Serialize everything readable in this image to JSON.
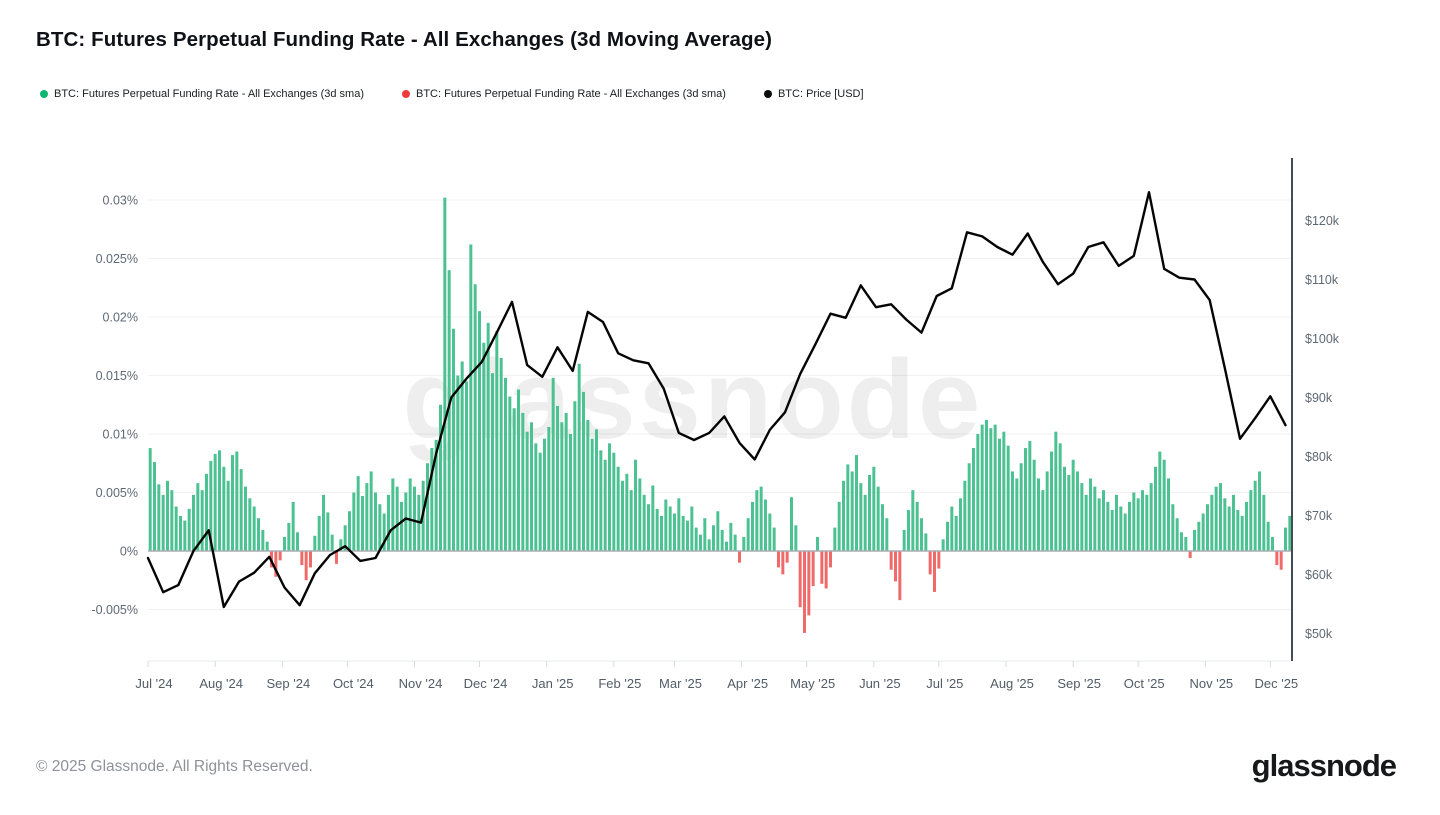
{
  "header": {
    "title": "BTC: Futures Perpetual Funding Rate - All Exchanges (3d Moving Average)"
  },
  "legend": {
    "items": [
      {
        "label": "BTC: Futures Perpetual Funding Rate - All Exchanges (3d sma)",
        "color": "#10b572"
      },
      {
        "label": "BTC: Futures Perpetual Funding Rate - All Exchanges (3d sma)",
        "color": "#f03b3b"
      },
      {
        "label": "BTC: Price [USD]",
        "color": "#0a0a0a"
      }
    ]
  },
  "watermark": "glassnode",
  "footer": {
    "copyright": "© 2025 Glassnode. All Rights Reserved.",
    "brand": "glassnode"
  },
  "chart_data": {
    "type": "bar+line",
    "title": "BTC: Futures Perpetual Funding Rate - All Exchanges (3d Moving Average)",
    "grid": "horizontal",
    "x_ticks": [
      "Jul '24",
      "Aug '24",
      "Sep '24",
      "Oct '24",
      "Nov '24",
      "Dec '24",
      "Jan '25",
      "Feb '25",
      "Mar '25",
      "Apr '25",
      "May '25",
      "Jun '25",
      "Jul '25",
      "Aug '25",
      "Sep '25",
      "Oct '25",
      "Nov '25",
      "Dec '25"
    ],
    "month_start_days": [
      0,
      31,
      62,
      92,
      123,
      153,
      184,
      215,
      243,
      274,
      304,
      335,
      365,
      396,
      427,
      457,
      488,
      518
    ],
    "domain_days": 528,
    "left_axis": {
      "title": "funding rate",
      "tick_labels": [
        "0.03%",
        "0.025%",
        "0.02%",
        "0.015%",
        "0.01%",
        "0.005%",
        "0%",
        "-0.005%"
      ],
      "tick_values": [
        0.03,
        0.025,
        0.02,
        0.015,
        0.01,
        0.005,
        0,
        -0.005
      ],
      "range": [
        -0.0095,
        0.033
      ]
    },
    "right_axis": {
      "title": "BTC price USD",
      "tick_labels": [
        "$120k",
        "$110k",
        "$100k",
        "$90k",
        "$80k",
        "$70k",
        "$60k",
        "$50k"
      ],
      "tick_values_k": [
        120,
        110,
        100,
        90,
        80,
        70,
        60,
        50
      ],
      "range_k": [
        45,
        129
      ]
    },
    "series": [
      {
        "name": "BTC: Futures Perpetual Funding Rate - All Exchanges (3d sma)",
        "type": "bar",
        "unit": "%",
        "color_positive": "#4cc292",
        "color_negative": "#f16a6a",
        "start": "Jul '24",
        "step_days": 2,
        "values": [
          0.0088,
          0.0076,
          0.0057,
          0.0048,
          0.006,
          0.0052,
          0.0038,
          0.003,
          0.0026,
          0.0036,
          0.0048,
          0.0058,
          0.0052,
          0.0066,
          0.0077,
          0.0083,
          0.0086,
          0.0072,
          0.006,
          0.0082,
          0.0085,
          0.007,
          0.0055,
          0.0045,
          0.0038,
          0.0028,
          0.0018,
          0.0008,
          -0.0014,
          -0.0022,
          -0.0008,
          0.0012,
          0.0024,
          0.0042,
          0.0016,
          -0.0012,
          -0.0025,
          -0.0014,
          0.0013,
          0.003,
          0.0048,
          0.0033,
          0.0014,
          -0.0011,
          0.001,
          0.0022,
          0.0034,
          0.005,
          0.0064,
          0.0047,
          0.0058,
          0.0068,
          0.005,
          0.004,
          0.0032,
          0.0048,
          0.0062,
          0.0055,
          0.0042,
          0.005,
          0.0062,
          0.0055,
          0.0048,
          0.006,
          0.0075,
          0.0088,
          0.0095,
          0.0125,
          0.0302,
          0.024,
          0.019,
          0.015,
          0.0162,
          0.0145,
          0.0262,
          0.0228,
          0.0205,
          0.0178,
          0.0195,
          0.0152,
          0.0188,
          0.0165,
          0.0148,
          0.0132,
          0.0122,
          0.0138,
          0.0118,
          0.0102,
          0.011,
          0.0092,
          0.0084,
          0.0096,
          0.0106,
          0.0148,
          0.0124,
          0.011,
          0.0118,
          0.01,
          0.0128,
          0.016,
          0.0136,
          0.0112,
          0.0096,
          0.0104,
          0.0086,
          0.0078,
          0.0092,
          0.0084,
          0.0072,
          0.006,
          0.0066,
          0.0052,
          0.0078,
          0.0062,
          0.0048,
          0.004,
          0.0056,
          0.0036,
          0.003,
          0.0044,
          0.0038,
          0.0032,
          0.0045,
          0.003,
          0.0026,
          0.0038,
          0.002,
          0.0014,
          0.0028,
          0.001,
          0.0022,
          0.0034,
          0.0018,
          0.0008,
          0.0024,
          0.0014,
          -0.001,
          0.0012,
          0.0028,
          0.0042,
          0.0052,
          0.0055,
          0.0044,
          0.0032,
          0.002,
          -0.0014,
          -0.002,
          -0.001,
          0.0046,
          0.0022,
          -0.0048,
          -0.007,
          -0.0055,
          -0.003,
          0.0012,
          -0.0028,
          -0.0032,
          -0.0014,
          0.002,
          0.0042,
          0.006,
          0.0074,
          0.0068,
          0.0082,
          0.0058,
          0.0048,
          0.0065,
          0.0072,
          0.0055,
          0.004,
          0.0028,
          -0.0016,
          -0.0026,
          -0.0042,
          0.0018,
          0.0035,
          0.0052,
          0.0042,
          0.0028,
          0.0015,
          -0.002,
          -0.0035,
          -0.0015,
          0.001,
          0.0025,
          0.0038,
          0.003,
          0.0045,
          0.006,
          0.0075,
          0.0088,
          0.01,
          0.0108,
          0.0112,
          0.0105,
          0.0108,
          0.0096,
          0.0102,
          0.009,
          0.0068,
          0.0062,
          0.0075,
          0.0088,
          0.0094,
          0.0078,
          0.0062,
          0.0052,
          0.0068,
          0.0085,
          0.0102,
          0.0092,
          0.0072,
          0.0065,
          0.0078,
          0.0068,
          0.0058,
          0.0048,
          0.0062,
          0.0055,
          0.0045,
          0.0052,
          0.0042,
          0.0035,
          0.0048,
          0.0038,
          0.0032,
          0.0042,
          0.005,
          0.0045,
          0.0052,
          0.0048,
          0.0058,
          0.0072,
          0.0085,
          0.0078,
          0.0062,
          0.004,
          0.0028,
          0.0016,
          0.0012,
          -0.0006,
          0.0018,
          0.0025,
          0.0032,
          0.004,
          0.0048,
          0.0055,
          0.0058,
          0.0045,
          0.0038,
          0.0048,
          0.0035,
          0.003,
          0.0042,
          0.0052,
          0.006,
          0.0068,
          0.0048,
          0.0025,
          0.0012,
          -0.0012,
          -0.0016,
          0.002,
          0.003
        ]
      },
      {
        "name": "BTC: Price [USD]",
        "type": "line",
        "unit": "k USD",
        "color": "#050505",
        "start": "Jul '24",
        "step_days": 7,
        "values": [
          62.8,
          57.0,
          58.2,
          64.0,
          67.5,
          54.5,
          58.8,
          60.3,
          63.0,
          57.8,
          54.8,
          60.2,
          63.3,
          64.8,
          62.3,
          62.8,
          67.5,
          69.5,
          68.8,
          80.5,
          90.0,
          93.2,
          96.0,
          101.0,
          106.2,
          95.5,
          93.5,
          98.5,
          94.5,
          104.5,
          102.8,
          97.5,
          96.3,
          95.8,
          91.5,
          84.0,
          82.8,
          84.0,
          86.8,
          82.3,
          79.5,
          84.5,
          87.5,
          94.0,
          99.0,
          104.2,
          103.5,
          109.0,
          105.3,
          105.8,
          103.2,
          101.0,
          107.2,
          108.5,
          118.0,
          117.3,
          115.5,
          114.2,
          117.8,
          113.0,
          109.2,
          111.0,
          115.5,
          116.3,
          112.3,
          114.0,
          124.8,
          111.8,
          110.3,
          110.0,
          106.5,
          95.0,
          83.0,
          86.5,
          90.2,
          85.3
        ]
      }
    ]
  }
}
